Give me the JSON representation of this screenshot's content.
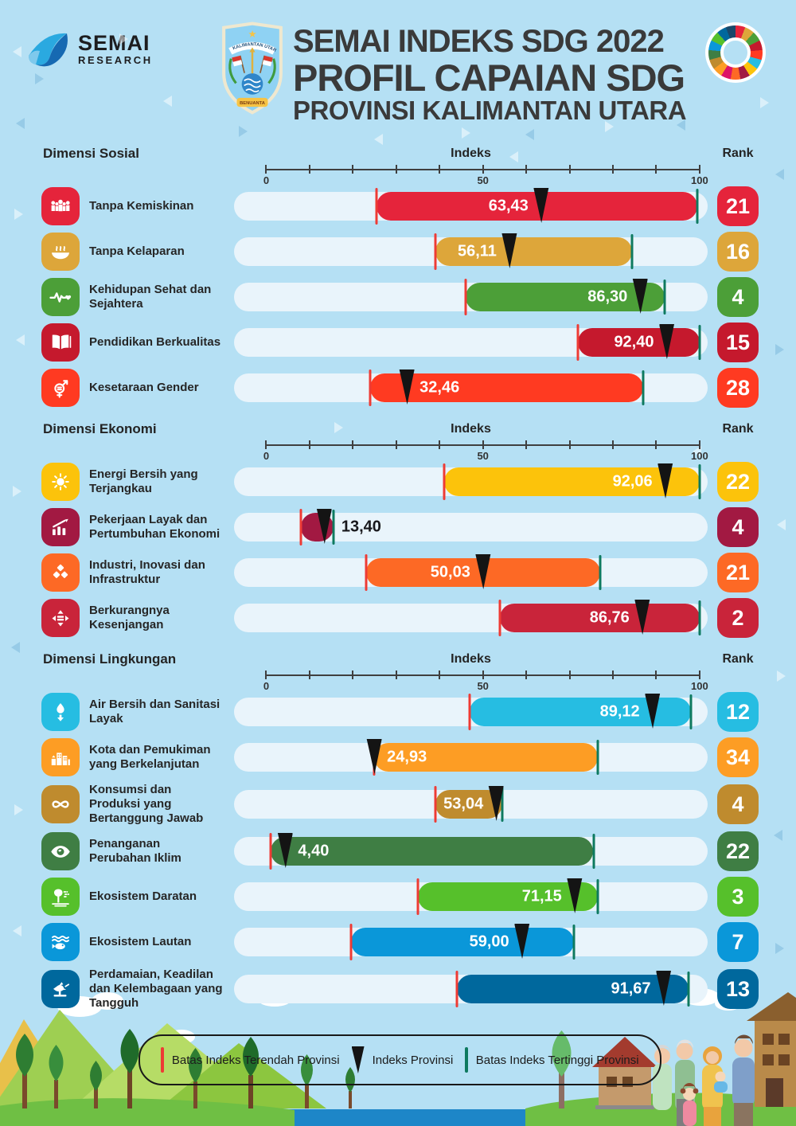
{
  "header": {
    "logo": {
      "name": "SEMAI",
      "sub": "RESEARCH"
    },
    "emblem": {
      "region": "KALIMANTAN UTARA",
      "motto": "BENUANTA"
    },
    "title_line1": "SEMAI INDEKS SDG 2022",
    "title_line2": "PROFIL CAPAIAN SDG",
    "title_line3": "PROVINSI KALIMANTAN UTARA"
  },
  "axis": {
    "label": "Indeks",
    "rank_label": "Rank",
    "ticks": [
      "0",
      "50",
      "100"
    ],
    "min": 0,
    "max": 100
  },
  "legend": {
    "low": "Batas Indeks Terendah Provinsi",
    "marker": "Indeks Provinsi",
    "high": "Batas Indeks Tertinggi Provinsi"
  },
  "colors": {
    "background": "#b5e0f4",
    "track": "#e9f4fb",
    "low_tick": "#ee3b35",
    "high_tick": "#0e7a5f",
    "marker": "#141414"
  },
  "sections": [
    {
      "title": "Dimensi Sosial",
      "rows": [
        {
          "label": "Tanpa Kemiskinan",
          "icon": "no-poverty",
          "color": "#e5243b",
          "min": 25.5,
          "value": 63.43,
          "value_label": "63,43",
          "max": 99.5,
          "rank": "21",
          "value_pos": "before"
        },
        {
          "label": "Tanpa Kelaparan",
          "icon": "zero-hunger",
          "color": "#dda63a",
          "min": 39,
          "value": 56.11,
          "value_label": "56,11",
          "max": 84.5,
          "rank": "16",
          "value_pos": "before"
        },
        {
          "label": "Kehidupan Sehat dan Sejahtera",
          "icon": "good-health",
          "color": "#4c9f38",
          "min": 46,
          "value": 86.3,
          "value_label": "86,30",
          "max": 92,
          "rank": "4",
          "value_pos": "before"
        },
        {
          "label": "Pendidikan Berkualitas",
          "icon": "quality-education",
          "color": "#c5192d",
          "min": 72,
          "value": 92.4,
          "value_label": "92,40",
          "max": 100,
          "rank": "15",
          "value_pos": "before"
        },
        {
          "label": "Kesetaraan Gender",
          "icon": "gender-equality",
          "color": "#ff3a21",
          "min": 24,
          "value": 32.46,
          "value_label": "32,46",
          "max": 87,
          "rank": "28",
          "value_pos": "after"
        }
      ]
    },
    {
      "title": "Dimensi Ekonomi",
      "rows": [
        {
          "label": "Energi Bersih yang Terjangkau",
          "icon": "clean-energy",
          "color": "#fcc30b",
          "min": 41,
          "value": 92.06,
          "value_label": "92,06",
          "max": 100,
          "rank": "22",
          "value_pos": "before"
        },
        {
          "label": "Pekerjaan Layak dan Pertumbuhan Ekonomi",
          "icon": "decent-work",
          "color": "#a21942",
          "min": 8,
          "value": 13.4,
          "value_label": "13,40",
          "max": 15.5,
          "rank": "4",
          "value_pos": "outside"
        },
        {
          "label": "Industri, Inovasi dan Infrastruktur",
          "icon": "industry-innovation",
          "color": "#fd6925",
          "min": 23,
          "value": 50.03,
          "value_label": "50,03",
          "max": 77,
          "rank": "21",
          "value_pos": "before"
        },
        {
          "label": "Berkurangnya Kesenjangan",
          "icon": "reduced-inequalities",
          "color": "#c9243a",
          "min": 54,
          "value": 86.76,
          "value_label": "86,76",
          "max": 100,
          "rank": "2",
          "value_pos": "before"
        }
      ]
    },
    {
      "title": "Dimensi Lingkungan",
      "rows": [
        {
          "label": "Air Bersih dan Sanitasi Layak",
          "icon": "clean-water",
          "color": "#26bde2",
          "min": 47,
          "value": 89.12,
          "value_label": "89,12",
          "max": 98,
          "rank": "12",
          "value_pos": "before"
        },
        {
          "label": "Kota dan Pemukiman yang Berkelanjutan",
          "icon": "sustainable-cities",
          "color": "#fd9d24",
          "min": 24.93,
          "value": 24.93,
          "value_label": "24,93",
          "max": 76.5,
          "rank": "34",
          "value_pos": "after"
        },
        {
          "label": "Konsumsi dan Produksi yang Bertanggung Jawab",
          "icon": "responsible-consumption",
          "color": "#bf8b2e",
          "min": 39,
          "value": 53.04,
          "value_label": "53,04",
          "max": 54.5,
          "rank": "4",
          "value_pos": "before"
        },
        {
          "label": "Penanganan Perubahan Iklim",
          "icon": "climate-action",
          "color": "#3f7e44",
          "min": 1,
          "value": 4.4,
          "value_label": "4,40",
          "max": 75.5,
          "rank": "22",
          "value_pos": "after"
        },
        {
          "label": "Ekosistem Daratan",
          "icon": "life-on-land",
          "color": "#56c02b",
          "min": 35,
          "value": 71.15,
          "value_label": "71,15",
          "max": 76.5,
          "rank": "3",
          "value_pos": "before"
        },
        {
          "label": "Ekosistem Lautan",
          "icon": "life-below-water",
          "color": "#0a97d9",
          "min": 19.5,
          "value": 59.0,
          "value_label": "59,00",
          "max": 71,
          "rank": "7",
          "value_pos": "before"
        },
        {
          "label": "Perdamaian, Keadilan dan Kelembagaan yang Tangguh",
          "icon": "peace-justice",
          "color": "#00689d",
          "min": 44,
          "value": 91.67,
          "value_label": "91,67",
          "max": 97.5,
          "rank": "13",
          "value_pos": "before"
        }
      ]
    }
  ],
  "chart_data": {
    "type": "bar",
    "variant": "range-bullet",
    "title": "SEMAI INDEKS SDG 2022 — PROFIL CAPAIAN SDG PROVINSI KALIMANTAN UTARA",
    "xlabel": "Indeks",
    "xlim": [
      0,
      100
    ],
    "x_ticks": [
      0,
      50,
      100
    ],
    "legend": [
      "Batas Indeks Terendah Provinsi",
      "Indeks Provinsi",
      "Batas Indeks Tertinggi Provinsi"
    ],
    "legend_position": "bottom",
    "note": "Marker = provincial index (labeled). Bar extents = lowest/highest provincial index bounds, estimated from pixels (unlabeled).",
    "series": [
      {
        "dimension": "Dimensi Sosial",
        "goal": "Tanpa Kemiskinan",
        "indeks": 63.43,
        "rank": 21,
        "batas_terendah_est": 25.5,
        "batas_tertinggi_est": 99.5
      },
      {
        "dimension": "Dimensi Sosial",
        "goal": "Tanpa Kelaparan",
        "indeks": 56.11,
        "rank": 16,
        "batas_terendah_est": 39,
        "batas_tertinggi_est": 84.5
      },
      {
        "dimension": "Dimensi Sosial",
        "goal": "Kehidupan Sehat dan Sejahtera",
        "indeks": 86.3,
        "rank": 4,
        "batas_terendah_est": 46,
        "batas_tertinggi_est": 92
      },
      {
        "dimension": "Dimensi Sosial",
        "goal": "Pendidikan Berkualitas",
        "indeks": 92.4,
        "rank": 15,
        "batas_terendah_est": 72,
        "batas_tertinggi_est": 100
      },
      {
        "dimension": "Dimensi Sosial",
        "goal": "Kesetaraan Gender",
        "indeks": 32.46,
        "rank": 28,
        "batas_terendah_est": 24,
        "batas_tertinggi_est": 87
      },
      {
        "dimension": "Dimensi Ekonomi",
        "goal": "Energi Bersih yang Terjangkau",
        "indeks": 92.06,
        "rank": 22,
        "batas_terendah_est": 41,
        "batas_tertinggi_est": 100
      },
      {
        "dimension": "Dimensi Ekonomi",
        "goal": "Pekerjaan Layak dan Pertumbuhan Ekonomi",
        "indeks": 13.4,
        "rank": 4,
        "batas_terendah_est": 8,
        "batas_tertinggi_est": 15.5
      },
      {
        "dimension": "Dimensi Ekonomi",
        "goal": "Industri, Inovasi dan Infrastruktur",
        "indeks": 50.03,
        "rank": 21,
        "batas_terendah_est": 23,
        "batas_tertinggi_est": 77
      },
      {
        "dimension": "Dimensi Ekonomi",
        "goal": "Berkurangnya Kesenjangan",
        "indeks": 86.76,
        "rank": 2,
        "batas_terendah_est": 54,
        "batas_tertinggi_est": 100
      },
      {
        "dimension": "Dimensi Lingkungan",
        "goal": "Air Bersih dan Sanitasi Layak",
        "indeks": 89.12,
        "rank": 12,
        "batas_terendah_est": 47,
        "batas_tertinggi_est": 98
      },
      {
        "dimension": "Dimensi Lingkungan",
        "goal": "Kota dan Pemukiman yang Berkelanjutan",
        "indeks": 24.93,
        "rank": 34,
        "batas_terendah_est": 24.93,
        "batas_tertinggi_est": 76.5
      },
      {
        "dimension": "Dimensi Lingkungan",
        "goal": "Konsumsi dan Produksi yang Bertanggung Jawab",
        "indeks": 53.04,
        "rank": 4,
        "batas_terendah_est": 39,
        "batas_tertinggi_est": 54.5
      },
      {
        "dimension": "Dimensi Lingkungan",
        "goal": "Penanganan Perubahan Iklim",
        "indeks": 4.4,
        "rank": 22,
        "batas_terendah_est": 1,
        "batas_tertinggi_est": 75.5
      },
      {
        "dimension": "Dimensi Lingkungan",
        "goal": "Ekosistem Daratan",
        "indeks": 71.15,
        "rank": 3,
        "batas_terendah_est": 35,
        "batas_tertinggi_est": 76.5
      },
      {
        "dimension": "Dimensi Lingkungan",
        "goal": "Ekosistem Lautan",
        "indeks": 59.0,
        "rank": 7,
        "batas_terendah_est": 19.5,
        "batas_tertinggi_est": 71
      },
      {
        "dimension": "Dimensi Lingkungan",
        "goal": "Perdamaian, Keadilan dan Kelembagaan yang Tangguh",
        "indeks": 91.67,
        "rank": 13,
        "batas_terendah_est": 44,
        "batas_tertinggi_est": 97.5
      }
    ]
  }
}
